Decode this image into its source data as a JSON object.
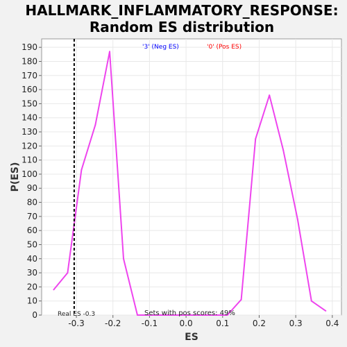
{
  "chart_data": {
    "type": "line",
    "title_line1": "HALLMARK_INFLAMMATORY_RESPONSE:",
    "title_line2": "Random ES distribution",
    "xlabel": "ES",
    "ylabel": "P(ES)",
    "xlim": [
      -0.395,
      0.425
    ],
    "ylim": [
      0,
      196
    ],
    "x_ticks": [
      -0.3,
      -0.2,
      -0.1,
      0.0,
      0.1,
      0.2,
      0.3,
      0.4
    ],
    "x_tick_labels": [
      "-0.3",
      "-0.2",
      "-0.1",
      "0.0",
      "0.1",
      "0.2",
      "0.3",
      "0.4"
    ],
    "y_ticks": [
      0,
      10,
      20,
      30,
      40,
      50,
      60,
      70,
      80,
      90,
      100,
      110,
      120,
      130,
      140,
      150,
      160,
      170,
      180,
      190
    ],
    "y_tick_labels": [
      "0",
      "10",
      "20",
      "30",
      "40",
      "50",
      "60",
      "70",
      "80",
      "90",
      "100",
      "110",
      "120",
      "130",
      "140",
      "150",
      "160",
      "170",
      "180",
      "190"
    ],
    "grid": true,
    "series": [
      {
        "color": "#ee44ee",
        "x": [
          -0.362,
          -0.324,
          -0.286,
          -0.248,
          -0.209,
          -0.171,
          -0.133,
          0.113,
          0.151,
          0.19,
          0.228,
          0.266,
          0.305,
          0.343,
          0.382
        ],
        "y": [
          18,
          30,
          103,
          135,
          187,
          40,
          0,
          0,
          11,
          125,
          156,
          117,
          68,
          10,
          3
        ]
      }
    ],
    "real_es": -0.306,
    "annotations": {
      "neg_label": "'3' (Neg ES)",
      "neg_color": "#0000ff",
      "pos_label": "'0' (Pos ES)",
      "pos_color": "#ff0000",
      "real_es_label": "Real ES -0.3",
      "pos_scores_label": "Sets with pos scores: 49%"
    }
  }
}
